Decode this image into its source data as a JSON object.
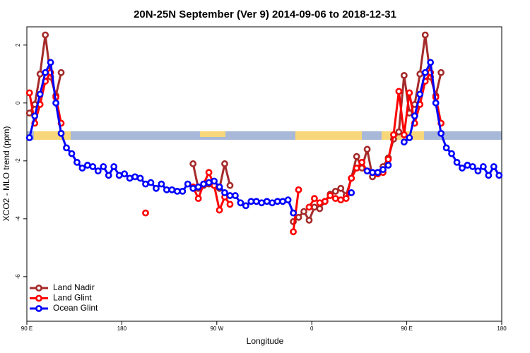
{
  "chart_data": {
    "type": "line",
    "title": "20N-25N September (Ver 9)   2014-09-06 to 2018-12-31",
    "x_label": "Longitude",
    "y_label": "XCO2 - MLO trend (ppm)",
    "xlim": [
      90,
      540
    ],
    "ylim": [
      -7.54,
      2.63
    ],
    "xticks": [
      {
        "value": 90,
        "label": "90 E"
      },
      {
        "value": 180,
        "label": "180"
      },
      {
        "value": 270,
        "label": "90 W"
      },
      {
        "value": 360,
        "label": "0"
      },
      {
        "value": 450,
        "label": "90 E"
      },
      {
        "value": 540,
        "label": "180"
      }
    ],
    "yticks": [
      -6,
      -4,
      -2,
      0,
      2
    ],
    "legend": "bottom-left",
    "x": [
      92.5,
      97.5,
      102.5,
      107.5,
      112.5,
      117.5,
      122.5,
      127.5,
      132.5,
      137.5,
      142.5,
      147.5,
      152.5,
      157.5,
      162.5,
      167.5,
      172.5,
      177.5,
      182.5,
      187.5,
      192.5,
      197.5,
      202.5,
      207.5,
      212.5,
      217.5,
      222.5,
      227.5,
      232.5,
      237.5,
      242.5,
      247.5,
      252.5,
      257.5,
      262.5,
      267.5,
      272.5,
      277.5,
      282.5,
      287.5,
      292.5,
      297.5,
      302.5,
      307.5,
      312.5,
      317.5,
      322.5,
      327.5,
      332.5,
      337.5,
      342.5,
      347.5,
      352.5,
      357.5,
      362.5,
      367.5,
      372.5,
      377.5,
      382.5,
      387.5,
      392.5,
      397.5,
      402.5,
      407.5,
      412.5,
      417.5,
      422.5,
      427.5,
      432.5,
      437.5,
      442.5,
      447.5,
      452.5,
      457.5,
      462.5,
      467.5,
      472.5,
      477.5,
      482.5,
      487.5,
      492.5,
      497.5,
      502.5,
      507.5,
      512.5,
      517.5,
      522.5,
      527.5,
      532.5,
      537.5
    ],
    "series": [
      {
        "name": "Land Nadir",
        "color": "#a52a2a",
        "values": [
          -0.35,
          -0.05,
          1.0,
          2.35,
          0.9,
          0.25,
          1.05,
          null,
          null,
          null,
          null,
          null,
          null,
          null,
          null,
          null,
          null,
          null,
          null,
          null,
          null,
          null,
          null,
          null,
          null,
          null,
          null,
          null,
          null,
          null,
          null,
          -2.1,
          -2.95,
          -2.85,
          -2.8,
          -2.85,
          -2.95,
          -2.1,
          -2.85,
          null,
          null,
          null,
          null,
          null,
          null,
          null,
          null,
          null,
          null,
          null,
          -4.1,
          -3.95,
          -3.75,
          -4.05,
          -3.6,
          -3.65,
          -3.4,
          -3.15,
          -3.05,
          -2.95,
          -3.2,
          -2.6,
          -1.85,
          -2.25,
          -1.6,
          -2.55,
          -2.4,
          -2.2,
          -1.9,
          -1.25,
          -1.0,
          0.95,
          -0.35,
          -0.05,
          1.0,
          2.35,
          0.9,
          0.25,
          1.05,
          null,
          null,
          null,
          null,
          null,
          null,
          null,
          null,
          null,
          null,
          null
        ]
      },
      {
        "name": "Land Glint",
        "color": "#ff0000",
        "values": [
          0.35,
          -0.7,
          -0.05,
          0.75,
          1.05,
          0.2,
          -0.7,
          null,
          null,
          null,
          null,
          null,
          null,
          null,
          null,
          null,
          null,
          null,
          null,
          null,
          null,
          null,
          -3.8,
          null,
          null,
          null,
          null,
          null,
          null,
          null,
          null,
          -2.9,
          -3.3,
          -2.8,
          -2.4,
          -2.85,
          -3.7,
          -3.25,
          -3.5,
          null,
          null,
          null,
          null,
          null,
          null,
          null,
          null,
          null,
          null,
          null,
          -4.45,
          -3.0,
          null,
          -3.6,
          -3.3,
          -3.45,
          -3.4,
          -3.2,
          -3.3,
          -3.35,
          -3.3,
          -2.6,
          -2.25,
          -2.05,
          -2.35,
          null,
          -2.45,
          -2.4,
          -1.95,
          -1.1,
          0.4,
          -1.1,
          0.35,
          -0.7,
          -0.05,
          0.75,
          1.05,
          0.2,
          -0.7,
          null,
          null,
          null,
          null,
          null,
          null,
          null,
          null,
          null,
          null,
          null
        ]
      },
      {
        "name": "Ocean Glint",
        "color": "#0000ff",
        "values": [
          -1.2,
          -0.45,
          0.3,
          1.05,
          1.4,
          0,
          -1.05,
          -1.55,
          -1.75,
          -2.05,
          -2.25,
          -2.15,
          -2.2,
          -2.35,
          -2.2,
          -2.5,
          -2.2,
          -2.5,
          -2.45,
          -2.6,
          -2.55,
          -2.6,
          -2.8,
          -2.75,
          -2.95,
          -2.8,
          -3.0,
          -3.0,
          -3.05,
          -3.05,
          -2.8,
          -2.95,
          -2.9,
          -2.8,
          -2.75,
          -2.7,
          -2.9,
          -3.1,
          -3.2,
          -3.2,
          -3.45,
          -3.55,
          -3.4,
          -3.4,
          -3.45,
          -3.4,
          -3.45,
          -3.4,
          -3.4,
          -3.35,
          -3.8,
          null,
          null,
          null,
          null,
          null,
          null,
          null,
          null,
          null,
          null,
          -3.1,
          null,
          null,
          -2.35,
          -2.4,
          -2.4,
          -2.3,
          -2.15,
          null,
          null,
          -1.35,
          -1.2,
          -0.45,
          0.3,
          1.05,
          1.4,
          0,
          -1.05,
          -1.55,
          -1.75,
          -2.05,
          -2.25,
          -2.15,
          -2.2,
          -2.35,
          -2.2,
          -2.5,
          -2.2,
          -2.5
        ]
      }
    ]
  }
}
